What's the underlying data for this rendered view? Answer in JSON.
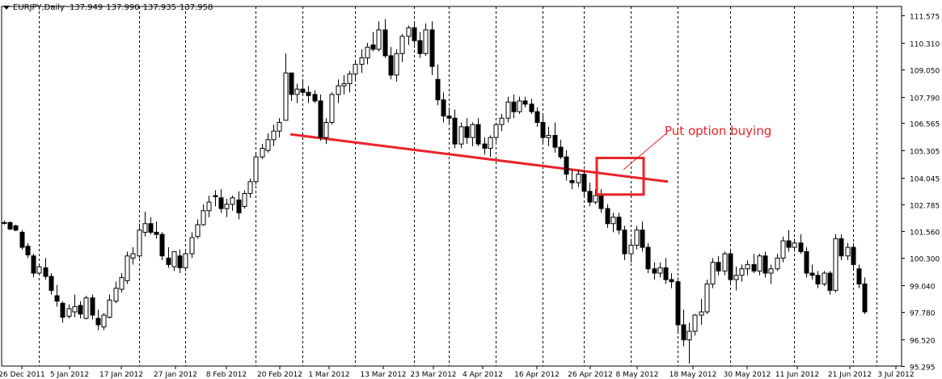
{
  "header": {
    "symbol": "EURJPY,Daily",
    "open": "137.949",
    "high": "137.990",
    "low": "137.935",
    "close": "137.958"
  },
  "annotation": {
    "text": "Put option buying",
    "color": "#e8242b"
  },
  "colors": {
    "bull": "#ffffff",
    "bear": "#000000",
    "wick": "#000000",
    "trendline": "#e8242b",
    "grid": "#000000"
  },
  "chart_data": {
    "type": "candlestick",
    "title": "",
    "xlabel": "",
    "ylabel": "",
    "ylim": [
      95.25,
      112.0
    ],
    "y_ticks": [
      "111.575",
      "110.310",
      "109.050",
      "107.790",
      "106.565",
      "105.305",
      "104.045",
      "102.785",
      "101.560",
      "100.300",
      "99.040",
      "97.780",
      "96.520",
      "95.295"
    ],
    "x_ticks": [
      "26 Dec 2011",
      "5 Jan 2012",
      "17 Jan 2012",
      "27 Jan 2012",
      "8 Feb 2012",
      "20 Feb 2012",
      "1 Mar 2012",
      "13 Mar 2012",
      "23 Mar 2012",
      "4 Apr 2012",
      "16 Apr 2012",
      "26 Apr 2012",
      "8 May 2012",
      "18 May 2012",
      "30 May 2012",
      "11 Jun 2012",
      "21 Jun 2012",
      "3 Jul 2012"
    ],
    "grid": "vertical dashed",
    "candles": [
      [
        101.95,
        102.05,
        101.85,
        101.95
      ],
      [
        101.95,
        102.0,
        101.6,
        101.65
      ],
      [
        101.8,
        101.85,
        101.55,
        101.6
      ],
      [
        101.5,
        101.6,
        100.7,
        100.8
      ],
      [
        100.85,
        101.0,
        100.3,
        100.45
      ],
      [
        100.4,
        100.5,
        99.4,
        99.6
      ],
      [
        99.6,
        100.0,
        99.5,
        99.9
      ],
      [
        99.85,
        100.3,
        99.3,
        99.45
      ],
      [
        99.45,
        99.6,
        98.6,
        98.8
      ],
      [
        98.55,
        99.05,
        98.05,
        98.3
      ],
      [
        98.2,
        98.3,
        97.3,
        97.55
      ],
      [
        97.6,
        98.15,
        97.5,
        97.95
      ],
      [
        97.8,
        98.6,
        97.55,
        98.05
      ],
      [
        98.1,
        98.3,
        97.5,
        97.7
      ],
      [
        97.5,
        98.55,
        97.45,
        98.45
      ],
      [
        98.45,
        98.6,
        97.45,
        97.65
      ],
      [
        97.5,
        97.9,
        96.95,
        97.2
      ],
      [
        97.1,
        97.75,
        96.95,
        97.65
      ],
      [
        97.55,
        98.6,
        97.5,
        98.35
      ],
      [
        98.3,
        99.2,
        98.2,
        98.9
      ],
      [
        98.85,
        99.6,
        98.7,
        99.4
      ],
      [
        99.25,
        100.6,
        99.1,
        100.4
      ],
      [
        100.3,
        100.8,
        100.0,
        100.5
      ],
      [
        100.4,
        101.9,
        100.3,
        101.6
      ],
      [
        101.5,
        102.45,
        101.3,
        101.9
      ],
      [
        101.9,
        102.2,
        101.4,
        101.5
      ],
      [
        101.5,
        102.0,
        101.2,
        101.4
      ],
      [
        101.4,
        101.5,
        100.2,
        100.4
      ],
      [
        100.3,
        100.8,
        99.85,
        100.0
      ],
      [
        99.9,
        100.6,
        99.7,
        100.6
      ],
      [
        100.4,
        100.7,
        99.6,
        99.85
      ],
      [
        99.85,
        100.6,
        99.7,
        100.5
      ],
      [
        100.5,
        101.5,
        100.3,
        101.25
      ],
      [
        101.3,
        102.1,
        101.2,
        101.85
      ],
      [
        101.85,
        102.8,
        101.8,
        102.5
      ],
      [
        102.5,
        103.2,
        102.2,
        102.9
      ],
      [
        103.2,
        103.45,
        102.7,
        103.15
      ],
      [
        103.1,
        103.5,
        102.4,
        102.6
      ],
      [
        102.6,
        103.05,
        102.2,
        102.8
      ],
      [
        102.8,
        103.2,
        102.5,
        103.1
      ],
      [
        103.0,
        103.4,
        102.1,
        102.4
      ],
      [
        102.7,
        103.45,
        102.6,
        103.3
      ],
      [
        103.3,
        104.0,
        103.1,
        103.85
      ],
      [
        103.85,
        105.2,
        103.7,
        105.0
      ],
      [
        105.0,
        105.6,
        104.9,
        105.4
      ],
      [
        105.3,
        106.1,
        105.2,
        105.8
      ],
      [
        105.8,
        106.5,
        105.5,
        106.2
      ],
      [
        106.2,
        106.8,
        105.9,
        106.6
      ],
      [
        106.7,
        109.8,
        106.7,
        108.9
      ],
      [
        108.9,
        108.9,
        107.6,
        107.9
      ],
      [
        107.9,
        108.4,
        107.5,
        108.15
      ],
      [
        108.15,
        108.6,
        107.9,
        108.0
      ],
      [
        108.0,
        108.3,
        107.5,
        107.85
      ],
      [
        107.9,
        108.1,
        107.5,
        107.6
      ],
      [
        107.6,
        107.9,
        105.75,
        105.9
      ],
      [
        105.9,
        106.8,
        105.6,
        106.6
      ],
      [
        106.6,
        108.0,
        106.5,
        107.9
      ],
      [
        107.9,
        108.6,
        107.5,
        108.3
      ],
      [
        108.3,
        108.8,
        107.9,
        108.4
      ],
      [
        108.4,
        109.0,
        108.0,
        108.85
      ],
      [
        108.85,
        109.4,
        108.5,
        109.3
      ],
      [
        109.3,
        110.0,
        108.9,
        109.6
      ],
      [
        109.6,
        110.3,
        109.3,
        110.1
      ],
      [
        110.2,
        110.8,
        109.9,
        110.0
      ],
      [
        110.0,
        111.3,
        109.9,
        110.9
      ],
      [
        110.9,
        111.4,
        109.6,
        109.7
      ],
      [
        109.7,
        110.1,
        108.6,
        108.8
      ],
      [
        108.8,
        110.0,
        108.5,
        109.8
      ],
      [
        109.8,
        110.7,
        109.4,
        110.6
      ],
      [
        110.6,
        111.1,
        110.2,
        111.0
      ],
      [
        111.0,
        111.3,
        110.2,
        110.4
      ],
      [
        110.4,
        110.8,
        109.6,
        109.8
      ],
      [
        109.8,
        111.2,
        109.7,
        110.9
      ],
      [
        110.9,
        111.3,
        108.8,
        109.2
      ],
      [
        108.6,
        109.3,
        107.4,
        107.65
      ],
      [
        107.65,
        108.0,
        106.6,
        106.9
      ],
      [
        106.9,
        107.3,
        106.5,
        106.8
      ],
      [
        106.8,
        107.2,
        105.4,
        105.6
      ],
      [
        105.6,
        106.6,
        105.4,
        106.4
      ],
      [
        106.4,
        106.8,
        105.6,
        105.9
      ],
      [
        105.9,
        106.6,
        105.5,
        106.5
      ],
      [
        106.5,
        106.8,
        105.5,
        105.6
      ],
      [
        105.6,
        105.9,
        105.1,
        105.4
      ],
      [
        105.4,
        106.0,
        105.0,
        105.9
      ],
      [
        105.9,
        106.6,
        105.7,
        106.5
      ],
      [
        106.5,
        107.0,
        106.2,
        106.8
      ],
      [
        106.8,
        107.8,
        106.6,
        107.55
      ],
      [
        107.55,
        107.9,
        106.8,
        107.1
      ],
      [
        107.1,
        107.8,
        107.0,
        107.6
      ],
      [
        107.6,
        107.8,
        107.3,
        107.45
      ],
      [
        107.45,
        107.7,
        107.0,
        107.1
      ],
      [
        107.1,
        107.3,
        106.4,
        106.6
      ],
      [
        106.6,
        107.0,
        105.6,
        105.9
      ],
      [
        105.9,
        106.4,
        105.5,
        106.0
      ],
      [
        106.0,
        106.6,
        105.2,
        105.45
      ],
      [
        105.45,
        105.8,
        104.9,
        105.0
      ],
      [
        105.0,
        105.3,
        103.9,
        104.2
      ],
      [
        103.9,
        104.4,
        103.5,
        103.8
      ],
      [
        103.8,
        104.4,
        103.6,
        104.2
      ],
      [
        104.2,
        104.4,
        103.2,
        103.4
      ],
      [
        103.4,
        103.8,
        102.7,
        102.9
      ],
      [
        102.9,
        103.5,
        102.8,
        103.2
      ],
      [
        103.2,
        103.5,
        102.4,
        102.6
      ],
      [
        102.6,
        102.8,
        101.7,
        101.9
      ],
      [
        101.9,
        102.4,
        101.5,
        102.2
      ],
      [
        102.2,
        102.4,
        101.4,
        101.6
      ],
      [
        101.6,
        101.8,
        100.2,
        100.5
      ],
      [
        100.5,
        101.2,
        100.1,
        100.9
      ],
      [
        100.9,
        101.8,
        100.7,
        101.6
      ],
      [
        101.6,
        102.0,
        100.6,
        100.8
      ],
      [
        100.8,
        101.0,
        99.6,
        99.8
      ],
      [
        99.8,
        100.1,
        99.3,
        99.6
      ],
      [
        99.6,
        100.1,
        99.4,
        99.85
      ],
      [
        99.85,
        100.3,
        99.1,
        99.3
      ],
      [
        99.3,
        99.6,
        98.9,
        99.2
      ],
      [
        99.2,
        99.4,
        96.9,
        97.2
      ],
      [
        97.2,
        97.9,
        96.2,
        96.5
      ],
      [
        96.5,
        97.3,
        95.4,
        96.9
      ],
      [
        96.9,
        97.7,
        96.7,
        97.65
      ],
      [
        97.65,
        98.4,
        97.2,
        97.8
      ],
      [
        97.8,
        99.3,
        97.7,
        99.1
      ],
      [
        99.1,
        100.3,
        98.9,
        100.1
      ],
      [
        100.1,
        100.4,
        99.5,
        99.7
      ],
      [
        99.7,
        100.6,
        99.5,
        100.5
      ],
      [
        100.5,
        100.7,
        99.1,
        99.3
      ],
      [
        99.3,
        99.9,
        98.8,
        99.5
      ],
      [
        99.5,
        100.0,
        99.2,
        99.8
      ],
      [
        99.8,
        100.2,
        99.5,
        100.0
      ],
      [
        100.0,
        100.5,
        99.6,
        99.7
      ],
      [
        99.7,
        100.5,
        99.5,
        100.4
      ],
      [
        100.4,
        100.6,
        99.4,
        99.6
      ],
      [
        99.6,
        100.0,
        99.1,
        99.8
      ],
      [
        99.8,
        100.5,
        99.7,
        100.3
      ],
      [
        100.3,
        101.3,
        100.1,
        101.1
      ],
      [
        101.1,
        101.6,
        100.6,
        100.8
      ],
      [
        100.8,
        101.2,
        100.6,
        101.0
      ],
      [
        101.0,
        101.4,
        100.5,
        100.6
      ],
      [
        100.6,
        100.8,
        99.4,
        99.6
      ],
      [
        99.6,
        100.0,
        99.3,
        99.5
      ],
      [
        99.5,
        99.7,
        98.9,
        99.1
      ],
      [
        99.1,
        99.7,
        99.0,
        99.6
      ],
      [
        99.6,
        99.7,
        98.6,
        98.8
      ],
      [
        98.8,
        101.4,
        98.7,
        101.2
      ],
      [
        101.2,
        101.4,
        100.2,
        100.4
      ],
      [
        100.4,
        101.0,
        100.2,
        100.8
      ],
      [
        100.8,
        101.0,
        99.8,
        100.0
      ],
      [
        99.8,
        100.0,
        98.9,
        99.1
      ],
      [
        99.1,
        99.4,
        97.7,
        97.8
      ]
    ],
    "trendline": {
      "from": [
        "24 Feb 2012",
        106.05
      ],
      "to": [
        "14 May 2012",
        103.85
      ]
    },
    "highlight": {
      "from": "3 May 2012",
      "to": "11 May 2012",
      "y_range": [
        103.25,
        104.95
      ]
    }
  }
}
